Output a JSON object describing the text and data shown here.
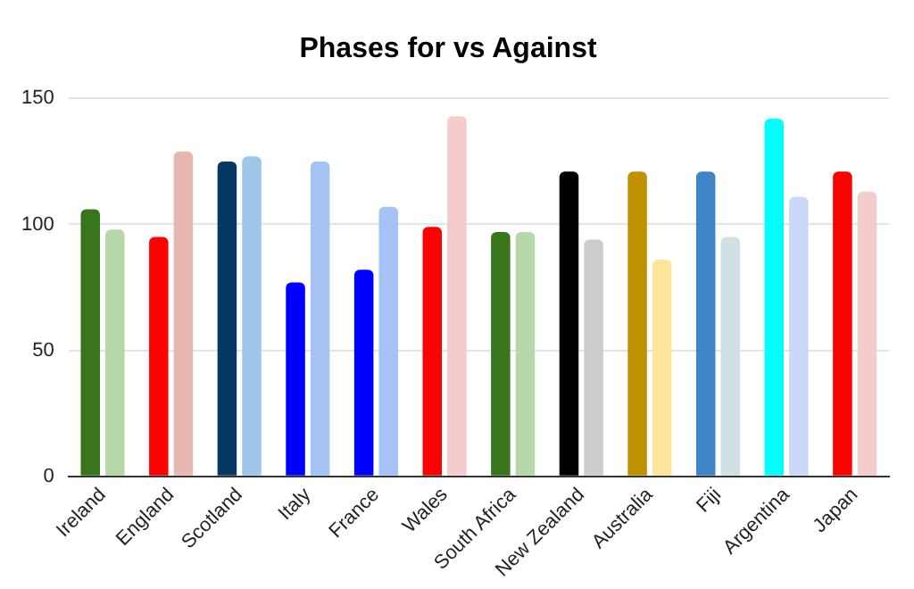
{
  "chart_data": {
    "type": "bar",
    "title": "Phases for vs Against",
    "categories": [
      "Ireland",
      "England",
      "Scotland",
      "Italy",
      "France",
      "Wales",
      "South Africa",
      "New Zealand",
      "Australia",
      "Fiji",
      "Argentina",
      "Japan"
    ],
    "series": [
      {
        "values": [
          106,
          95,
          125,
          77,
          82,
          99,
          97,
          121,
          121,
          121,
          142,
          121
        ],
        "colors": [
          "#38761d",
          "#ff0000",
          "#073763",
          "#0000ff",
          "#0000ff",
          "#ff0000",
          "#38761d",
          "#000000",
          "#bf9000",
          "#3d85c6",
          "#00ffff",
          "#ff0000"
        ]
      },
      {
        "values": [
          98,
          129,
          127,
          125,
          107,
          143,
          97,
          94,
          86,
          95,
          111,
          113
        ],
        "colors": [
          "#b6d7a8",
          "#e6b8af",
          "#9fc5e8",
          "#a4c2f4",
          "#a4c2f4",
          "#f4cccc",
          "#b6d7a8",
          "#cccccc",
          "#ffe599",
          "#d0e0e3",
          "#c9daf8",
          "#f4cccc"
        ]
      }
    ],
    "ylim": [
      0,
      150
    ],
    "yticks": [
      0,
      50,
      100,
      150
    ],
    "grid": "y",
    "legend": false
  }
}
